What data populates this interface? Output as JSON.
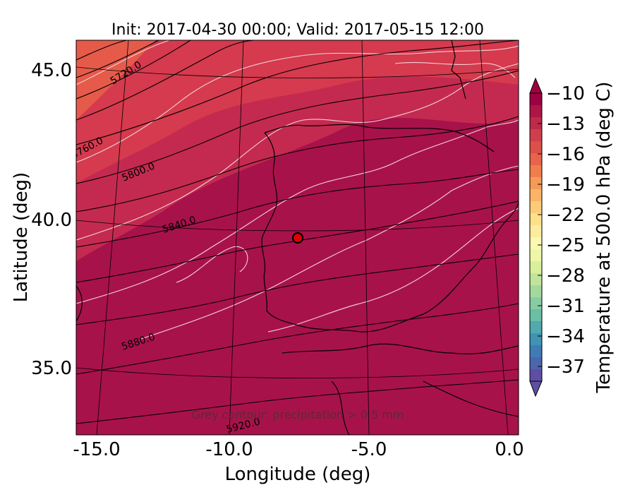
{
  "title": "Init: 2017-04-30 00:00; Valid: 2017-05-15 12:00",
  "x_axis": {
    "label": "Longitude (deg)",
    "ticks": [
      "-15.0",
      "-10.0",
      "-5.0",
      "0.0"
    ]
  },
  "y_axis": {
    "label": "Latitude (deg)",
    "ticks": [
      "45.0",
      "40.0",
      "35.0"
    ]
  },
  "colorbar": {
    "label": "Temperature at 500.0 hPa (deg C)",
    "ticks": [
      "−10",
      "−13",
      "−16",
      "−19",
      "−22",
      "−25",
      "−28",
      "−31",
      "−34",
      "−37"
    ],
    "colormap": "Spectral",
    "extend": "both"
  },
  "contours": {
    "height_labels": [
      "5720.0",
      "5760.0",
      "5800.0",
      "5840.0",
      "5880.0",
      "5920.0"
    ],
    "note": "Grey contour: precipitation > 0.5 mm"
  },
  "marker": {
    "color": "#e00000",
    "description": "station point"
  },
  "colors": {
    "field_dominant": "#a8124a",
    "field_warm": "#d73c4c",
    "field_hot": "#e8604a",
    "contour_black": "#000000",
    "contour_white": "#f3d3d8"
  }
}
